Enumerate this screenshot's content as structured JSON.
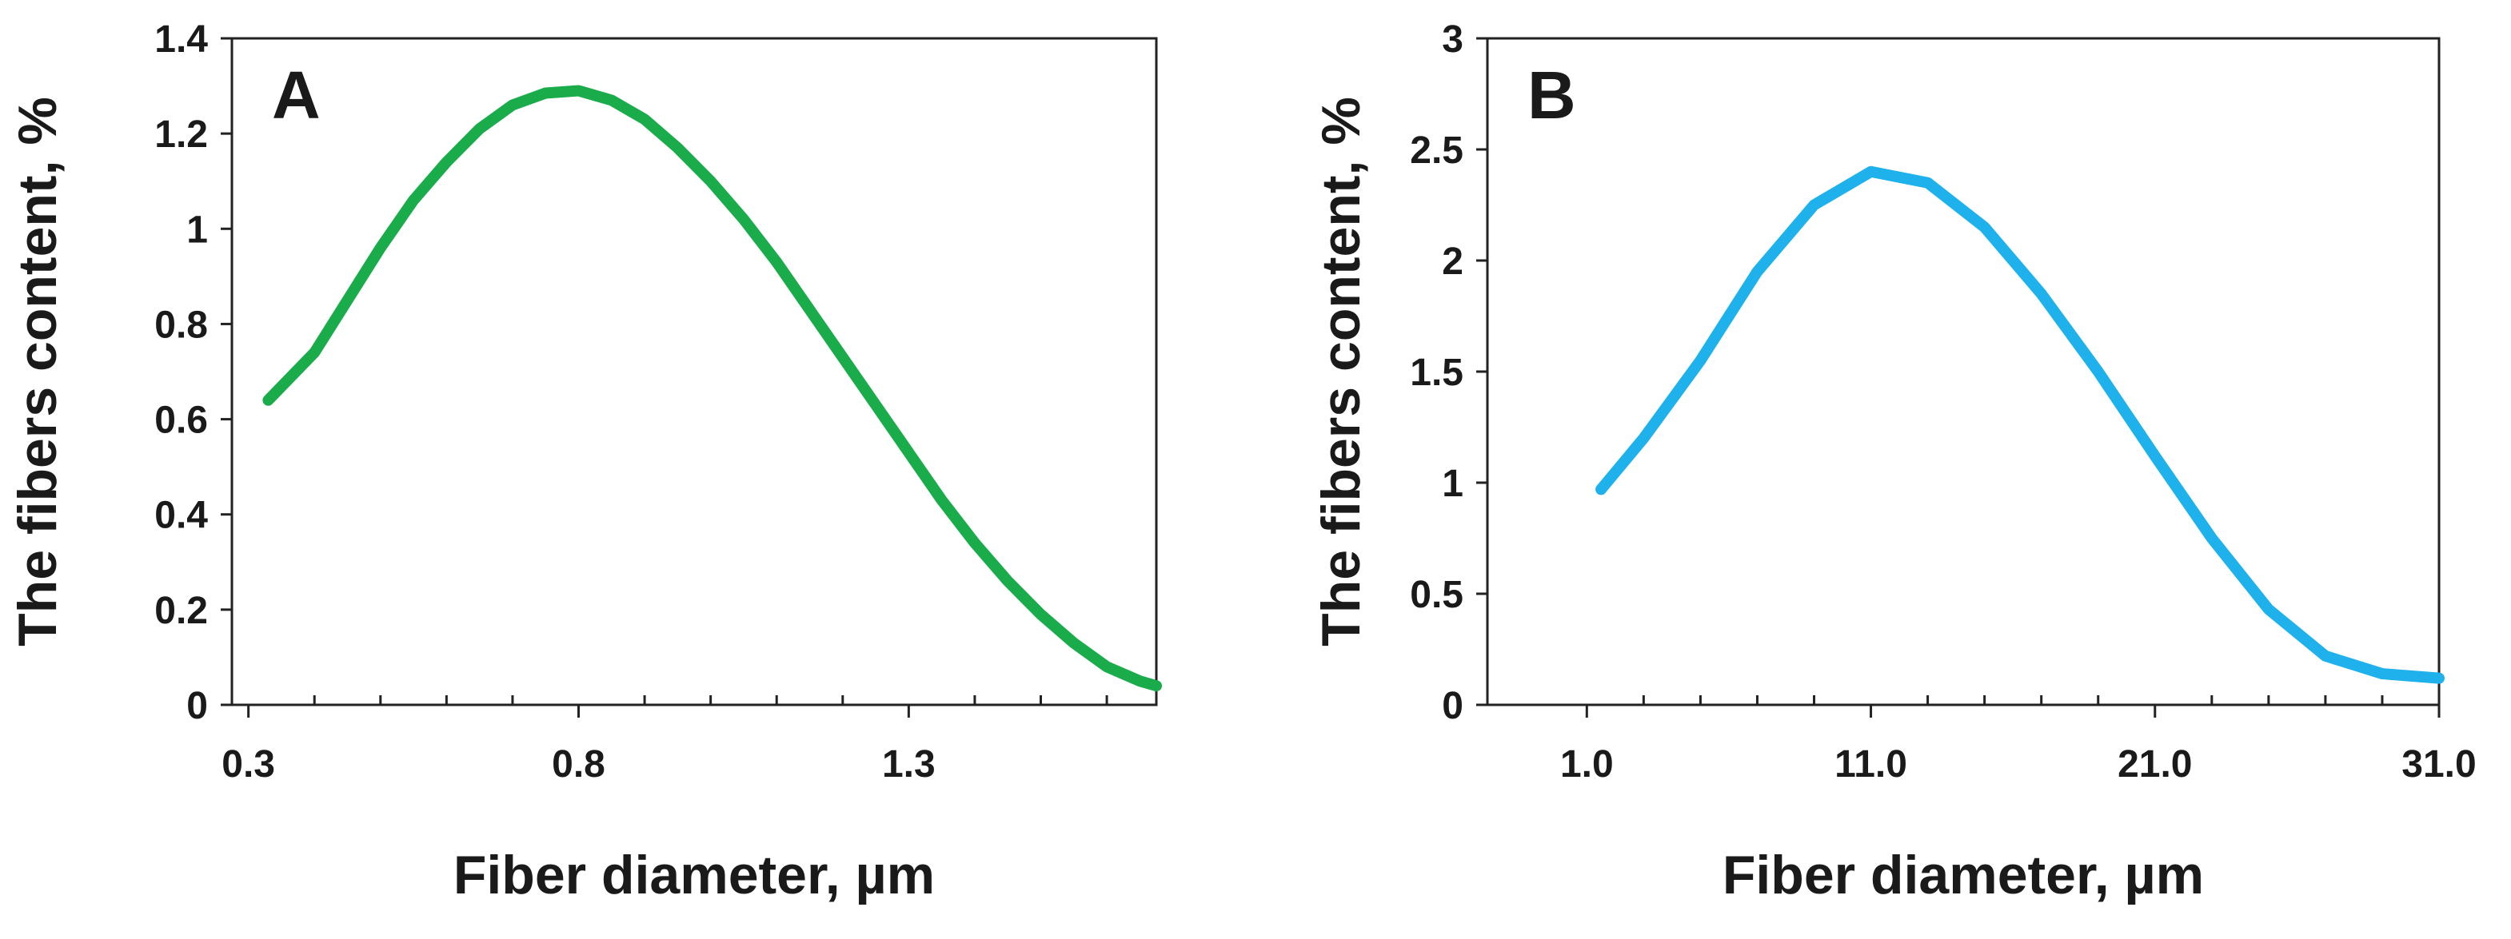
{
  "chart_data": [
    {
      "type": "line",
      "title": "A",
      "x_label": "Fiber diameter, µm",
      "y_label": "The fibers content, %",
      "xlim": [
        0.275,
        1.675
      ],
      "ylim": [
        0,
        1.4
      ],
      "xticks": [
        0.3,
        0.8,
        1.3
      ],
      "xminorticks": [
        0.4,
        0.5,
        0.6,
        0.7,
        0.9,
        1.0,
        1.1,
        1.2,
        1.4,
        1.5,
        1.6
      ],
      "yticks": [
        0,
        0.2,
        0.4,
        0.6,
        0.8,
        1,
        1.2,
        1.4
      ],
      "x": [
        0.33,
        0.4,
        0.45,
        0.5,
        0.55,
        0.6,
        0.65,
        0.7,
        0.75,
        0.8,
        0.85,
        0.9,
        0.95,
        1.0,
        1.05,
        1.1,
        1.15,
        1.2,
        1.25,
        1.3,
        1.35,
        1.4,
        1.45,
        1.5,
        1.55,
        1.6,
        1.65,
        1.675
      ],
      "series": [
        {
          "color": "#1aab4b",
          "values": [
            0.64,
            0.74,
            0.85,
            0.96,
            1.06,
            1.14,
            1.21,
            1.26,
            1.285,
            1.29,
            1.27,
            1.23,
            1.17,
            1.1,
            1.02,
            0.93,
            0.83,
            0.73,
            0.63,
            0.53,
            0.43,
            0.34,
            0.26,
            0.19,
            0.13,
            0.08,
            0.05,
            0.04
          ]
        }
      ]
    },
    {
      "type": "line",
      "title": "B",
      "x_label": "Fiber diameter, µm",
      "y_label": "The fibers content, %",
      "xlim": [
        -2.5,
        31
      ],
      "ylim": [
        0,
        3
      ],
      "xticks": [
        {
          "value": 1,
          "label": "1.0"
        },
        {
          "value": 11,
          "label": "11.0"
        },
        {
          "value": 21,
          "label": "21.0"
        },
        {
          "value": 31,
          "label": "31.0"
        }
      ],
      "xminorticks": [
        3,
        5,
        7,
        9,
        13,
        15,
        17,
        19,
        23,
        25,
        27,
        29
      ],
      "yticks": [
        0,
        0.5,
        1,
        1.5,
        2,
        2.5,
        3
      ],
      "x": [
        1.5,
        3,
        5,
        7,
        9,
        11,
        13,
        15,
        17,
        19,
        21,
        23,
        25,
        27,
        29,
        31
      ],
      "series": [
        {
          "color": "#1eb1ec",
          "values": [
            0.97,
            1.2,
            1.55,
            1.95,
            2.25,
            2.4,
            2.35,
            2.15,
            1.85,
            1.5,
            1.12,
            0.75,
            0.43,
            0.22,
            0.14,
            0.12
          ]
        }
      ]
    }
  ]
}
